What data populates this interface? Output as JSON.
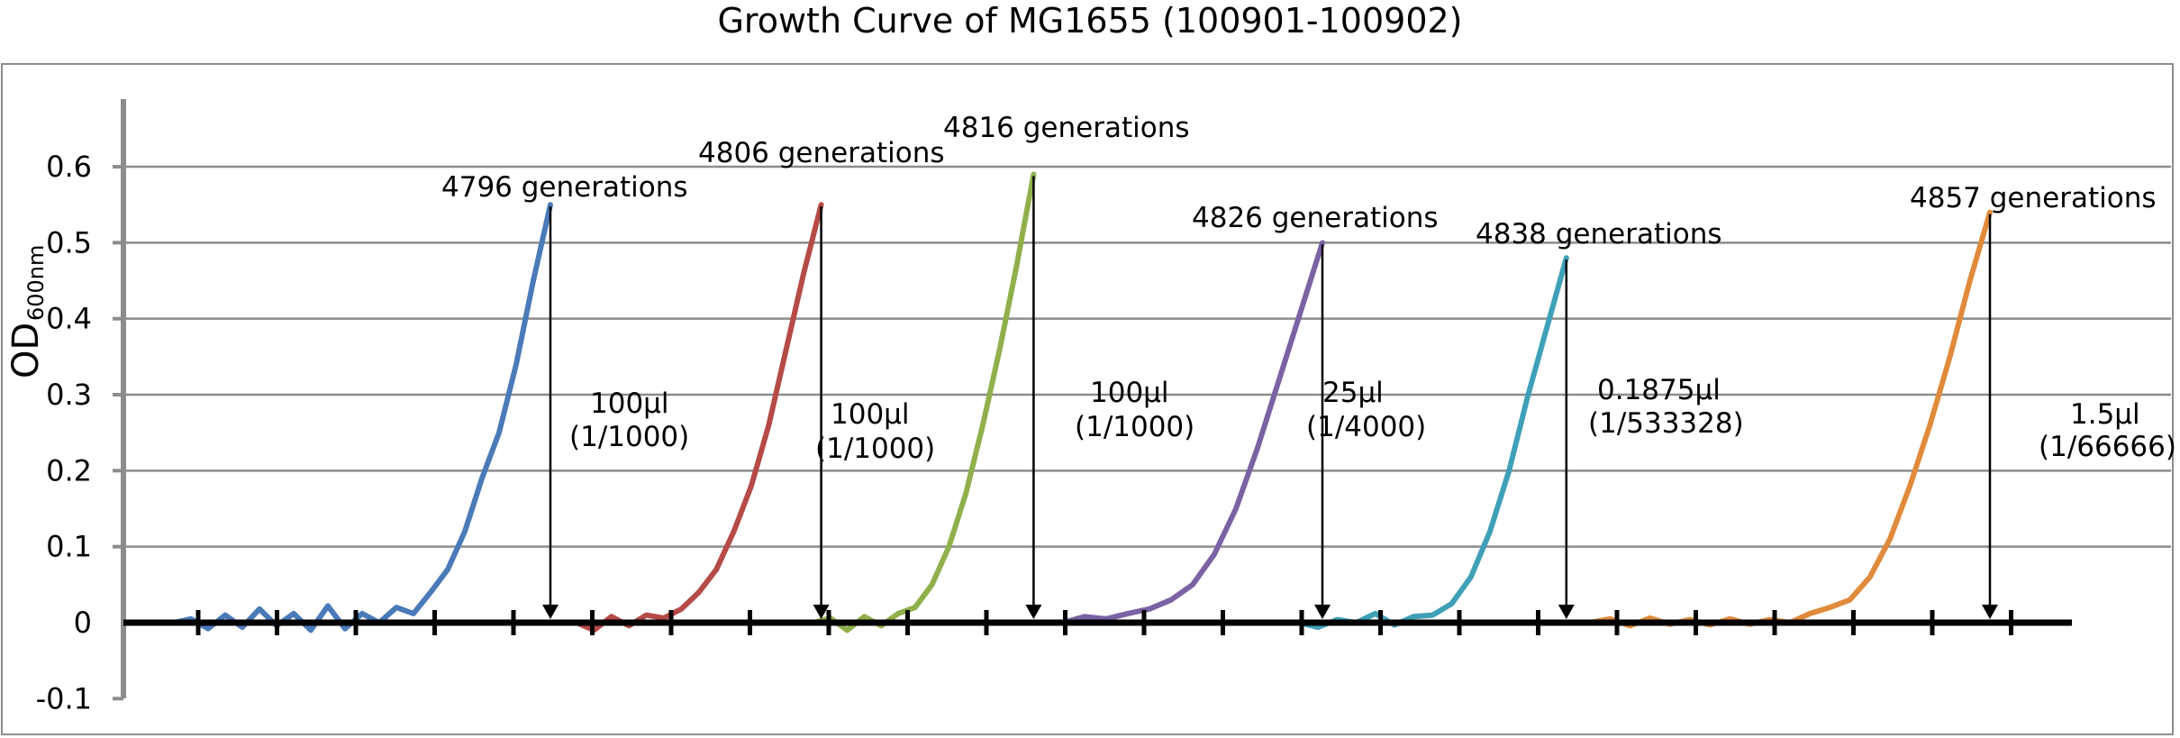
{
  "chart_data": {
    "type": "line",
    "title": "Growth Curve of MG1655 (100901-100902)",
    "ylabel": "OD",
    "ylabel_subscript": "600nm",
    "ylim": [
      -0.1,
      0.7
    ],
    "yticks": [
      -0.1,
      0,
      0.1,
      0.2,
      0.3,
      0.4,
      0.5,
      0.6
    ],
    "ytick_labels": [
      "-0.1",
      "0",
      "0.1",
      "0.2",
      "0.3",
      "0.4",
      "0.5",
      "0.6"
    ],
    "grid": true,
    "legend": "none",
    "series": [
      {
        "color": "#4a7ab8",
        "points": [
          [
            0,
            0.0
          ],
          [
            2,
            0.005
          ],
          [
            4,
            -0.008
          ],
          [
            6,
            0.01
          ],
          [
            8,
            -0.006
          ],
          [
            10,
            0.018
          ],
          [
            12,
            -0.004
          ],
          [
            14,
            0.012
          ],
          [
            16,
            -0.01
          ],
          [
            18,
            0.022
          ],
          [
            20,
            -0.008
          ],
          [
            22,
            0.012
          ],
          [
            24,
            0.0
          ],
          [
            26,
            0.02
          ],
          [
            28,
            0.012
          ],
          [
            30,
            0.04
          ],
          [
            32,
            0.07
          ],
          [
            34,
            0.12
          ],
          [
            36,
            0.19
          ],
          [
            38,
            0.25
          ],
          [
            40,
            0.34
          ],
          [
            42,
            0.45
          ],
          [
            44,
            0.55
          ]
        ],
        "annotation": "4796 generations",
        "transfer_volume": "100μl",
        "dilution": "(1/1000)"
      },
      {
        "color": "#b54a47",
        "points": [
          [
            0,
            0.0
          ],
          [
            2,
            -0.01
          ],
          [
            4,
            0.008
          ],
          [
            6,
            -0.004
          ],
          [
            8,
            0.01
          ],
          [
            10,
            0.006
          ],
          [
            12,
            0.018
          ],
          [
            14,
            0.04
          ],
          [
            16,
            0.07
          ],
          [
            18,
            0.12
          ],
          [
            20,
            0.18
          ],
          [
            22,
            0.26
          ],
          [
            24,
            0.36
          ],
          [
            26,
            0.46
          ],
          [
            28,
            0.55
          ]
        ],
        "annotation": "4806 generations",
        "transfer_volume": "100μl",
        "dilution": "(1/1000)"
      },
      {
        "color": "#8fb04b",
        "points": [
          [
            0,
            0.0
          ],
          [
            2,
            0.006
          ],
          [
            4,
            -0.01
          ],
          [
            6,
            0.008
          ],
          [
            8,
            -0.004
          ],
          [
            10,
            0.012
          ],
          [
            12,
            0.02
          ],
          [
            14,
            0.05
          ],
          [
            16,
            0.1
          ],
          [
            18,
            0.17
          ],
          [
            20,
            0.26
          ],
          [
            22,
            0.36
          ],
          [
            24,
            0.47
          ],
          [
            26,
            0.59
          ]
        ],
        "annotation": "4816 generations",
        "transfer_volume": "100μl",
        "dilution": "(1/1000)"
      },
      {
        "color": "#7b62a3",
        "points": [
          [
            0,
            0.0
          ],
          [
            2,
            0.008
          ],
          [
            4,
            0.005
          ],
          [
            6,
            0.012
          ],
          [
            8,
            0.018
          ],
          [
            10,
            0.03
          ],
          [
            12,
            0.05
          ],
          [
            14,
            0.09
          ],
          [
            16,
            0.15
          ],
          [
            18,
            0.23
          ],
          [
            20,
            0.32
          ],
          [
            22,
            0.41
          ],
          [
            24,
            0.5
          ]
        ],
        "annotation": "4826 generations",
        "transfer_volume": "25μl",
        "dilution": "(1/4000)"
      },
      {
        "color": "#3fa0b8",
        "points": [
          [
            0,
            0.0
          ],
          [
            2,
            -0.006
          ],
          [
            4,
            0.004
          ],
          [
            6,
            0.0
          ],
          [
            8,
            0.012
          ],
          [
            10,
            -0.003
          ],
          [
            12,
            0.008
          ],
          [
            14,
            0.01
          ],
          [
            16,
            0.025
          ],
          [
            18,
            0.06
          ],
          [
            20,
            0.12
          ],
          [
            22,
            0.2
          ],
          [
            24,
            0.3
          ],
          [
            26,
            0.39
          ],
          [
            28,
            0.48
          ]
        ],
        "annotation": "4838 generations",
        "transfer_volume": "0.1875μl",
        "dilution": "(1/533328)"
      },
      {
        "color": "#e08a3b",
        "points": [
          [
            0,
            0.0
          ],
          [
            2,
            0.005
          ],
          [
            4,
            -0.004
          ],
          [
            6,
            0.006
          ],
          [
            8,
            -0.002
          ],
          [
            10,
            0.004
          ],
          [
            12,
            -0.003
          ],
          [
            14,
            0.005
          ],
          [
            16,
            -0.002
          ],
          [
            18,
            0.004
          ],
          [
            20,
            0.0
          ],
          [
            22,
            0.012
          ],
          [
            24,
            0.02
          ],
          [
            26,
            0.03
          ],
          [
            28,
            0.06
          ],
          [
            30,
            0.11
          ],
          [
            32,
            0.18
          ],
          [
            34,
            0.26
          ],
          [
            36,
            0.35
          ],
          [
            38,
            0.45
          ],
          [
            40,
            0.54
          ]
        ],
        "annotation": "4857 generations",
        "transfer_volume": "1.5μl",
        "dilution": "(1/66666)"
      }
    ]
  }
}
